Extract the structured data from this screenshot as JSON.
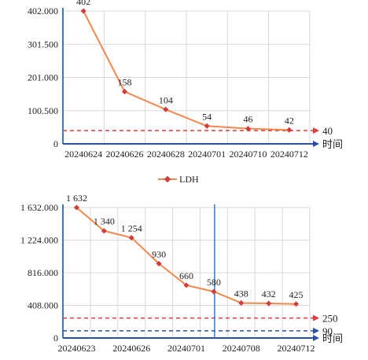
{
  "colors": {
    "line": "#f4874b",
    "marker": "#d23c3c",
    "ref_red": "#e23b3b",
    "ref_blue": "#2b4fa8",
    "axis_blue": "#3a78c8",
    "grid": "#d9d9d9"
  },
  "legend": {
    "label": "LDH",
    "placement": "between charts"
  },
  "chart_data": [
    {
      "type": "line",
      "x": [
        "20240624",
        "20240626",
        "20240628",
        "20240701",
        "20240710",
        "20240712"
      ],
      "values": [
        402,
        158,
        104,
        54,
        46,
        42
      ],
      "data_labels": [
        "402",
        "158",
        "104",
        "54",
        "46",
        "42"
      ],
      "yticks": [
        "0",
        "100.500",
        "201.000",
        "301.500",
        "402.000"
      ],
      "ylim": [
        0,
        402
      ],
      "xlabel": "时间",
      "reference_lines": [
        {
          "value": 40,
          "label": "40",
          "color": "red",
          "style": "dashed"
        }
      ],
      "grid": true
    },
    {
      "type": "line",
      "x": [
        "20240623",
        "",
        "20240626",
        "",
        "20240701",
        "",
        "20240708",
        "",
        "20240712"
      ],
      "xticks": [
        "20240623",
        "20240626",
        "20240701",
        "20240708",
        "20240712"
      ],
      "values": [
        1632,
        1340,
        1254,
        930,
        660,
        580,
        438,
        432,
        425
      ],
      "data_labels": [
        "1 632",
        "1 340",
        "1 254",
        "930",
        "660",
        "580",
        "438",
        "432",
        "425"
      ],
      "yticks": [
        "0",
        "408.000",
        "816.000",
        "1 224.000",
        "1 632.000"
      ],
      "ylim": [
        0,
        1632
      ],
      "xlabel": "时间",
      "reference_lines": [
        {
          "value": 250,
          "label": "250",
          "color": "red",
          "style": "dashed"
        },
        {
          "value": 90,
          "label": "90",
          "color": "blue",
          "style": "dashed"
        }
      ],
      "vertical_marker_after_index": 5,
      "grid": true
    }
  ]
}
